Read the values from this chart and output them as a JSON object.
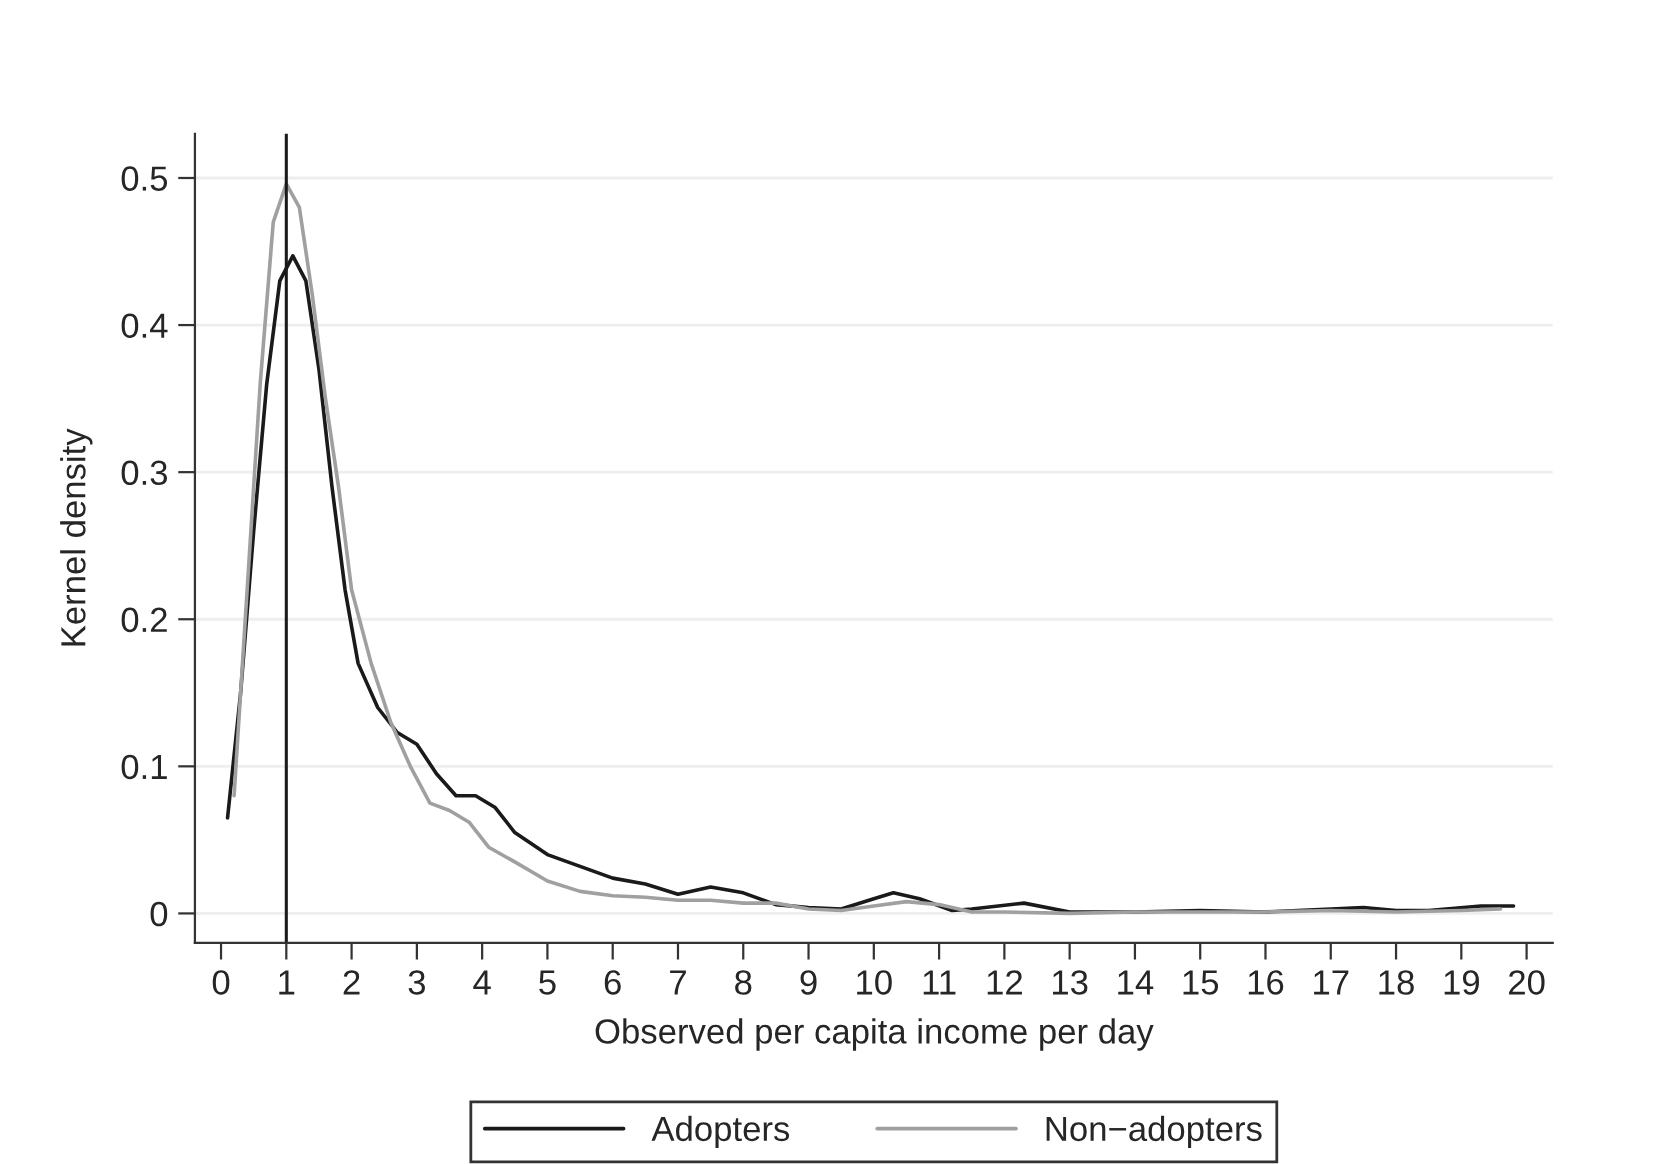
{
  "chart_data": {
    "type": "line",
    "xlabel": "Observed per capita income per day",
    "ylabel": "Kernel density",
    "xlim": [
      -0.4,
      20.4
    ],
    "ylim": [
      -0.02,
      0.53
    ],
    "xticks": [
      0,
      1,
      2,
      3,
      4,
      5,
      6,
      7,
      8,
      9,
      10,
      11,
      12,
      13,
      14,
      15,
      16,
      17,
      18,
      19,
      20
    ],
    "yticks": [
      0,
      0.1,
      0.2,
      0.3,
      0.4,
      0.5
    ],
    "grid": "y",
    "legend": "bottom",
    "marker": "none",
    "line_style": "solid",
    "ref_lines": [
      {
        "axis": "x",
        "value": 1,
        "color": "#1a1a1a"
      }
    ],
    "series": [
      {
        "name": "Adopters",
        "color": "#1a1a1a",
        "x": [
          0.1,
          0.3,
          0.5,
          0.7,
          0.9,
          1.1,
          1.3,
          1.5,
          1.7,
          1.9,
          2.1,
          2.4,
          2.7,
          3.0,
          3.3,
          3.6,
          3.9,
          4.2,
          4.5,
          5,
          5.5,
          6,
          6.5,
          7,
          7.5,
          8,
          8.5,
          9,
          9.5,
          10,
          10.3,
          10.7,
          11.2,
          11.5,
          12.3,
          13,
          14,
          15,
          16,
          17,
          17.5,
          18,
          18.5,
          19.3,
          19.8
        ],
        "values": [
          0.065,
          0.15,
          0.26,
          0.36,
          0.43,
          0.447,
          0.43,
          0.37,
          0.29,
          0.22,
          0.17,
          0.14,
          0.123,
          0.115,
          0.095,
          0.08,
          0.08,
          0.072,
          0.055,
          0.04,
          0.032,
          0.024,
          0.02,
          0.013,
          0.018,
          0.014,
          0.006,
          0.004,
          0.003,
          0.01,
          0.014,
          0.01,
          0.002,
          0.003,
          0.007,
          0.001,
          0.001,
          0.002,
          0.001,
          0.003,
          0.004,
          0.002,
          0.002,
          0.005,
          0.005
        ]
      },
      {
        "name": "Non−adopters",
        "color": "#a0a0a0",
        "x": [
          0.2,
          0.4,
          0.6,
          0.8,
          1.0,
          1.2,
          1.4,
          1.6,
          1.8,
          2.0,
          2.3,
          2.6,
          2.9,
          3.2,
          3.5,
          3.8,
          4.1,
          4.5,
          5,
          5.5,
          6,
          6.5,
          7,
          7.5,
          8,
          8.5,
          9,
          9.5,
          10,
          10.5,
          11,
          11.5,
          12,
          13,
          14,
          15,
          16,
          17,
          18,
          19,
          19.6
        ],
        "values": [
          0.08,
          0.22,
          0.36,
          0.47,
          0.496,
          0.48,
          0.42,
          0.35,
          0.29,
          0.22,
          0.17,
          0.13,
          0.1,
          0.075,
          0.07,
          0.062,
          0.045,
          0.035,
          0.022,
          0.015,
          0.012,
          0.011,
          0.009,
          0.009,
          0.007,
          0.007,
          0.003,
          0.002,
          0.005,
          0.008,
          0.006,
          0.001,
          0.001,
          0.0,
          0.001,
          0.001,
          0.001,
          0.002,
          0.001,
          0.002,
          0.003
        ]
      }
    ]
  }
}
